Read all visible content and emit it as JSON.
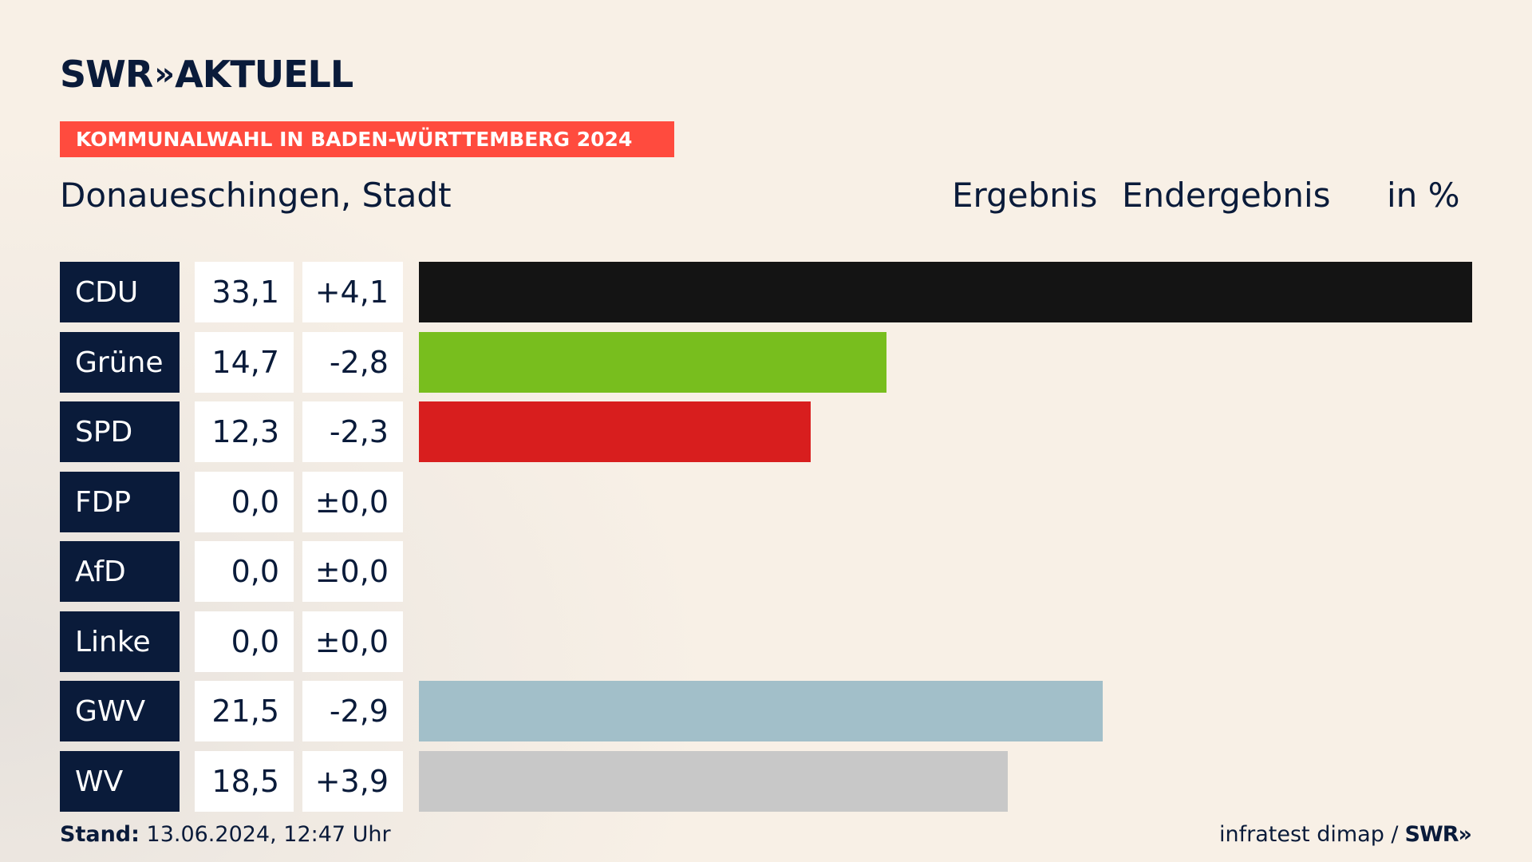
{
  "brand": {
    "logo_text": "SWR",
    "logo_chevrons": "»",
    "logo_suffix": "AKTUELL"
  },
  "banner": "KOMMUNALWAHL IN BADEN-WÜRTTEMBERG 2024",
  "subtitle": "Donaueschingen, Stadt",
  "headers": {
    "result": "Ergebnis",
    "status": "Endergebnis",
    "unit": "in %"
  },
  "colors": {
    "navy": "#0a1b3a",
    "banner": "#ff4b3e"
  },
  "chart_data": {
    "type": "bar",
    "orientation": "horizontal",
    "categories": [
      "CDU",
      "Grüne",
      "SPD",
      "FDP",
      "AfD",
      "Linke",
      "GWV",
      "WV"
    ],
    "values": [
      33.1,
      14.7,
      12.3,
      0.0,
      0.0,
      0.0,
      21.5,
      18.5
    ],
    "value_labels": [
      "33,1",
      "14,7",
      "12,3",
      "0,0",
      "0,0",
      "0,0",
      "21,5",
      "18,5"
    ],
    "diff_labels": [
      "+4,1",
      "-2,8",
      "-2,3",
      "±0,0",
      "±0,0",
      "±0,0",
      "-2,9",
      "+3,9"
    ],
    "bar_colors": [
      "#141414",
      "#78be1e",
      "#d81e1e",
      "#f5e100",
      "#00a0e6",
      "#be3075",
      "#a2bfc9",
      "#c8c8c8"
    ],
    "xlim": [
      0,
      33.1
    ]
  },
  "footer": {
    "stand_label": "Stand:",
    "stand_value": "13.06.2024, 12:47 Uhr",
    "source": "infratest dimap /",
    "source_brand": "SWR»"
  }
}
